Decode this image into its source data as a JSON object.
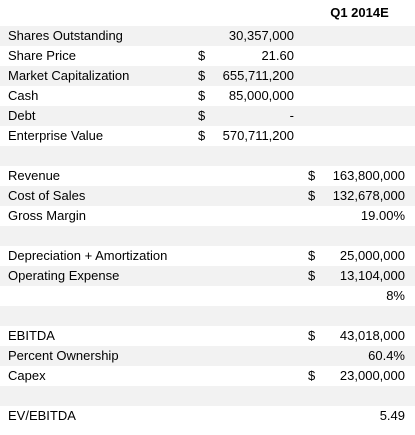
{
  "header": {
    "column": "Q1 2014E"
  },
  "table": {
    "rows": [
      {
        "label": "Shares Outstanding",
        "value1": "30,357,000"
      },
      {
        "label": "Share Price",
        "dollar1": "$",
        "value1": "21.60"
      },
      {
        "label": "Market Capitalization",
        "dollar1": "$",
        "value1": "655,711,200"
      },
      {
        "label": "Cash",
        "dollar1": "$",
        "value1": "85,000,000"
      },
      {
        "label": "Debt",
        "dollar1": "$",
        "value1": "-"
      },
      {
        "label": "Enterprise Value",
        "dollar1": "$",
        "value1": "570,711,200"
      },
      {},
      {
        "label": "Revenue",
        "dollar2": "$",
        "value2": "163,800,000"
      },
      {
        "label": "Cost of Sales",
        "dollar2": "$",
        "value2": "132,678,000"
      },
      {
        "label": "Gross Margin",
        "value2": "19.00%"
      },
      {},
      {
        "label": "Depreciation + Amortization",
        "dollar2": "$",
        "value2": "25,000,000"
      },
      {
        "label": "Operating Expense",
        "dollar2": "$",
        "value2": "13,104,000"
      },
      {
        "value2": "8%"
      },
      {},
      {
        "label": "EBITDA",
        "dollar2": "$",
        "value2": "43,018,000"
      },
      {
        "label": "Percent Ownership",
        "value2": "60.4%"
      },
      {
        "label": "Capex",
        "dollar2": "$",
        "value2": "23,000,000"
      },
      {},
      {
        "label": "EV/EBITDA",
        "value2": "5.49"
      }
    ]
  }
}
